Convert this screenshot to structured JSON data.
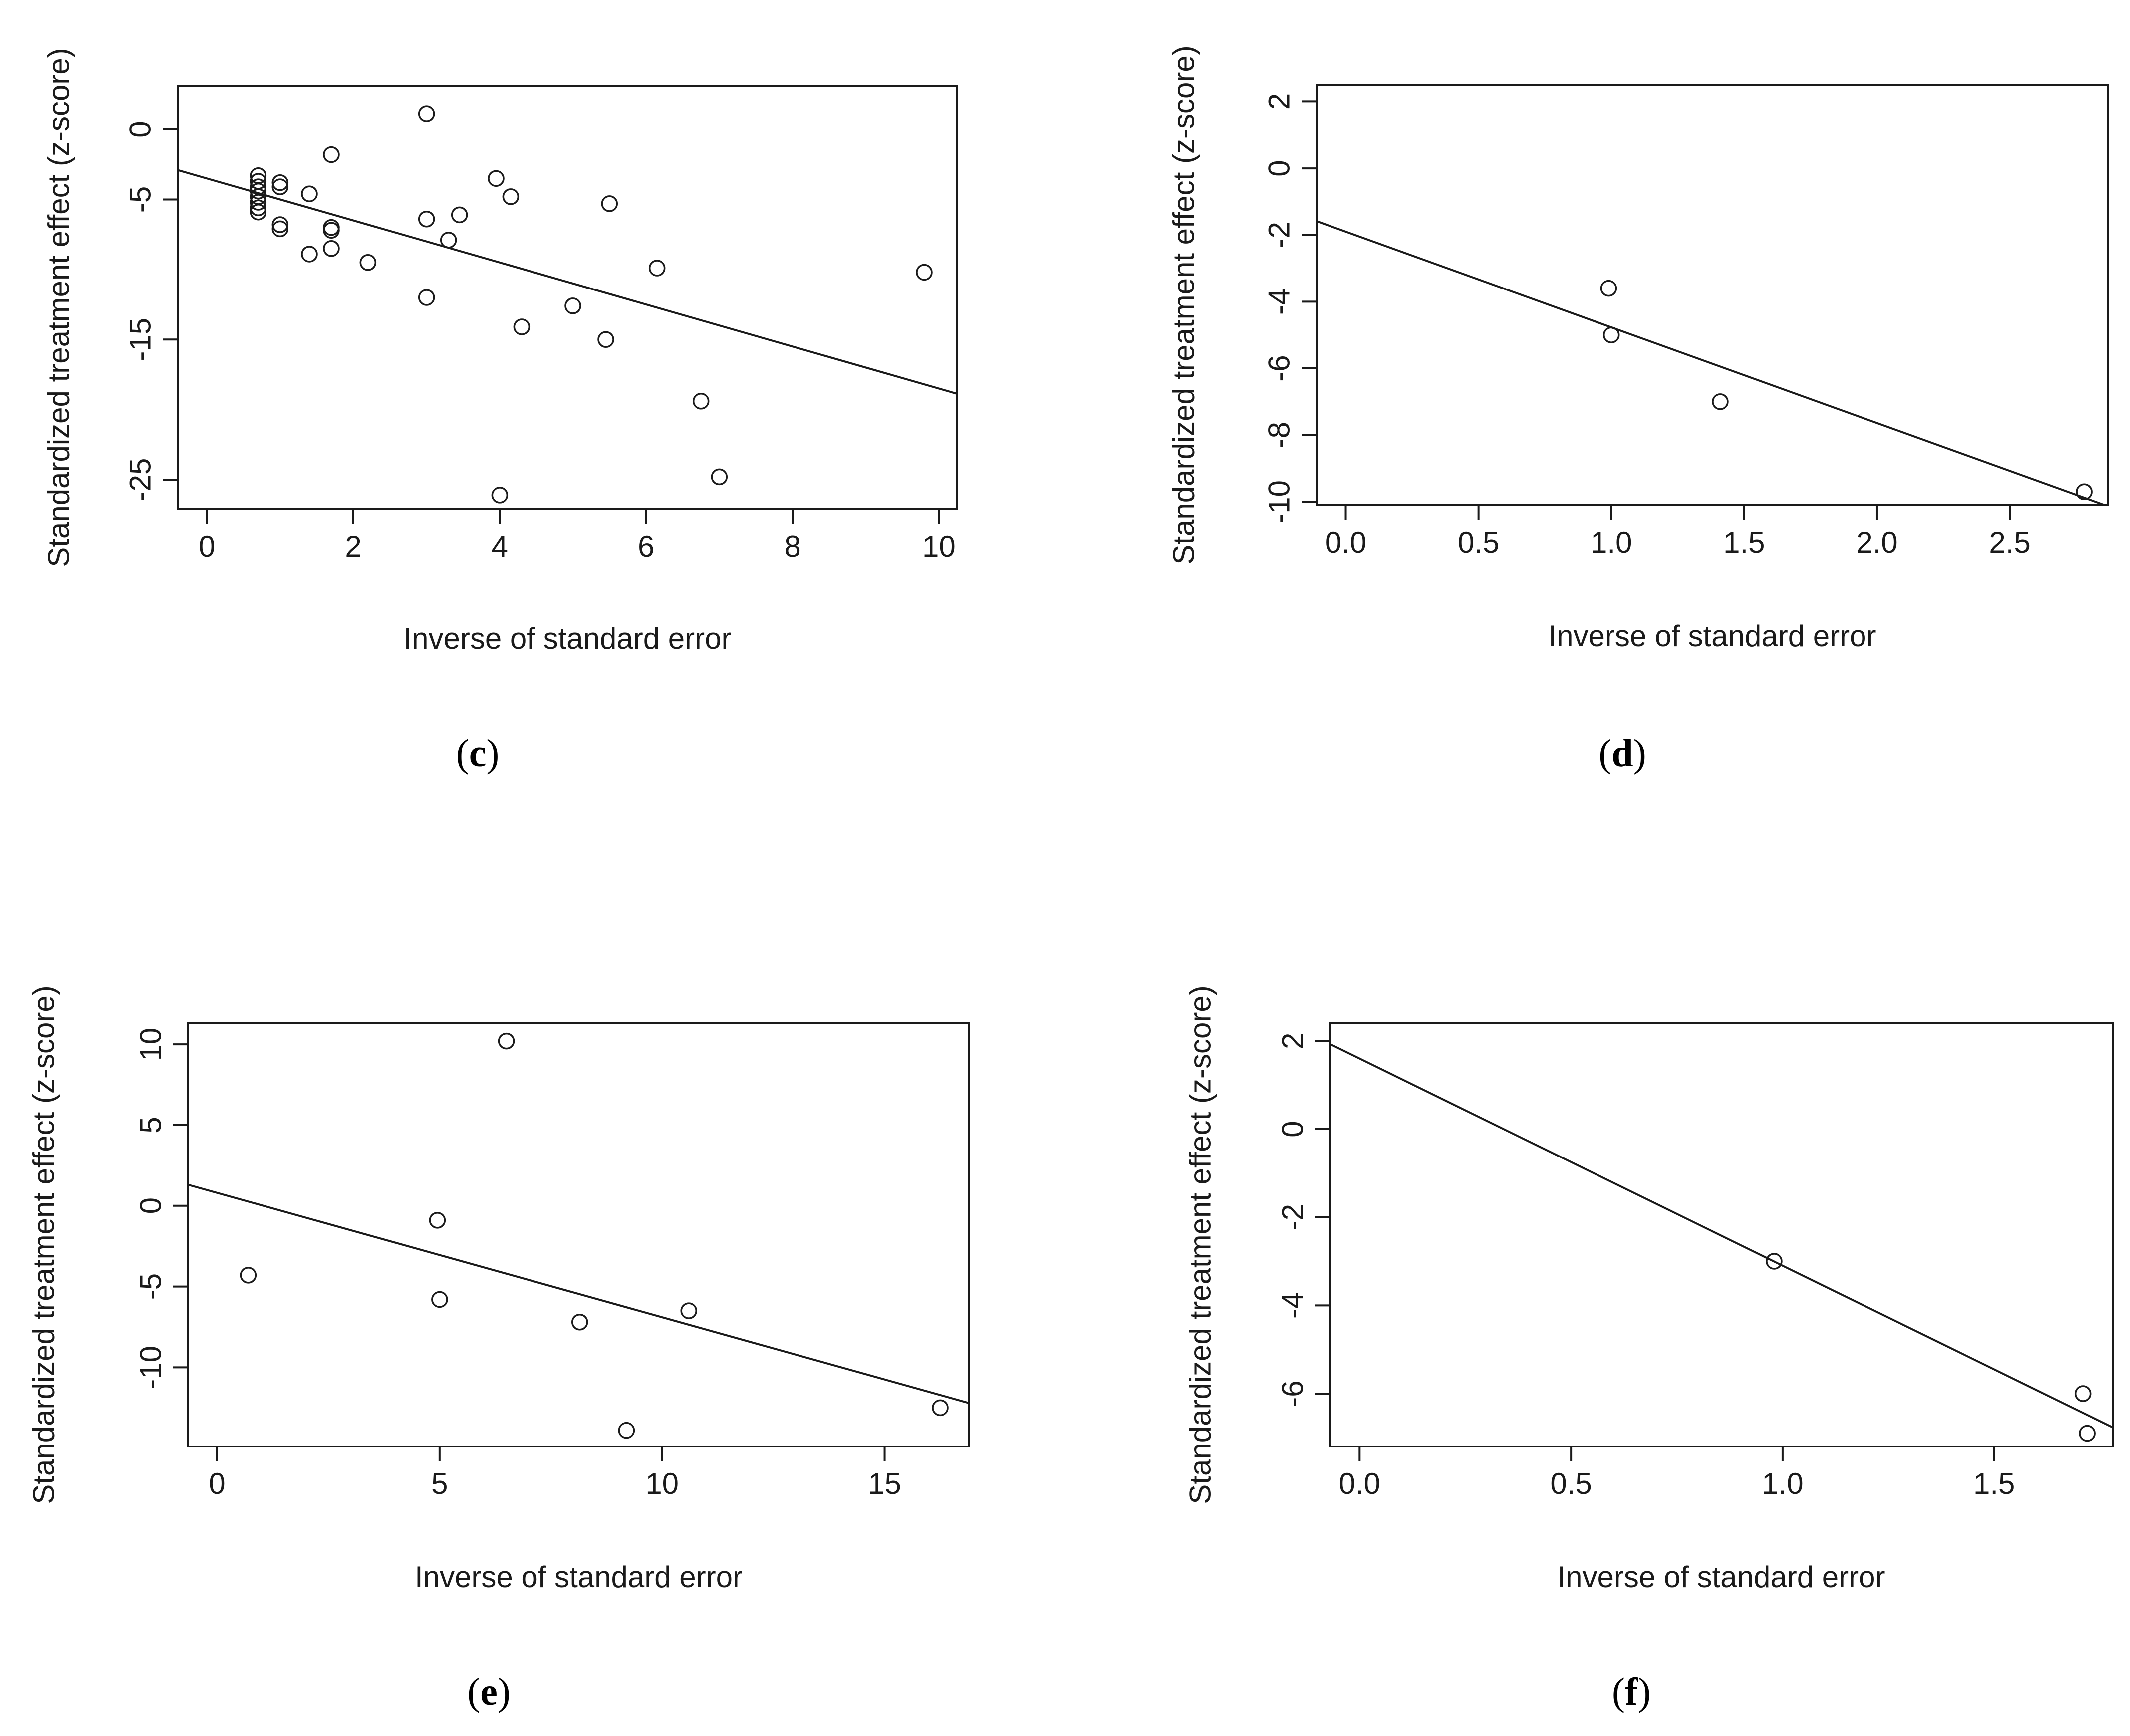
{
  "colors": {
    "ink": "#1a1a1a",
    "background": "#ffffff",
    "caption": "#000000"
  },
  "chart_data": [
    {
      "type": "scatter",
      "panel_label": "c",
      "caption": "(c)",
      "xlabel": "Inverse of standard error",
      "ylabel": "Standardized treatment effect (z-score)",
      "xlim": [
        -0.4,
        10.25
      ],
      "ylim": [
        -27.1,
        3.1
      ],
      "xticks": [
        0,
        2,
        4,
        6,
        8,
        10
      ],
      "yticks": [
        0,
        -5,
        -15,
        -25
      ],
      "xtick_labels": [
        "0",
        "2",
        "4",
        "6",
        "8",
        "10"
      ],
      "ytick_labels": [
        "0",
        "-5",
        "-15",
        "-25"
      ],
      "regression_line": {
        "intercept": -3.5,
        "slope": -1.5
      },
      "points": [
        {
          "x": 0.7,
          "y": -3.3
        },
        {
          "x": 0.7,
          "y": -3.7
        },
        {
          "x": 0.7,
          "y": -4.1
        },
        {
          "x": 0.7,
          "y": -4.4
        },
        {
          "x": 0.7,
          "y": -4.8
        },
        {
          "x": 0.7,
          "y": -5.2
        },
        {
          "x": 0.7,
          "y": -5.6
        },
        {
          "x": 0.7,
          "y": -5.9
        },
        {
          "x": 1.0,
          "y": -3.8
        },
        {
          "x": 1.0,
          "y": -4.1
        },
        {
          "x": 1.0,
          "y": -6.8
        },
        {
          "x": 1.0,
          "y": -7.1
        },
        {
          "x": 1.4,
          "y": -4.6
        },
        {
          "x": 1.4,
          "y": -8.9
        },
        {
          "x": 1.7,
          "y": -1.8
        },
        {
          "x": 1.7,
          "y": -7.0
        },
        {
          "x": 1.7,
          "y": -7.2
        },
        {
          "x": 1.7,
          "y": -8.5
        },
        {
          "x": 2.2,
          "y": -9.5
        },
        {
          "x": 3.0,
          "y": 1.1
        },
        {
          "x": 3.0,
          "y": -6.4
        },
        {
          "x": 3.0,
          "y": -12.0
        },
        {
          "x": 3.3,
          "y": -7.9
        },
        {
          "x": 3.45,
          "y": -6.1
        },
        {
          "x": 3.95,
          "y": -3.5
        },
        {
          "x": 4.0,
          "y": -26.1
        },
        {
          "x": 4.15,
          "y": -4.8
        },
        {
          "x": 4.3,
          "y": -14.1
        },
        {
          "x": 5.0,
          "y": -12.6
        },
        {
          "x": 5.45,
          "y": -15.0
        },
        {
          "x": 5.5,
          "y": -5.3
        },
        {
          "x": 6.15,
          "y": -9.9
        },
        {
          "x": 6.75,
          "y": -19.4
        },
        {
          "x": 7.0,
          "y": -24.8
        },
        {
          "x": 9.8,
          "y": -10.2
        }
      ]
    },
    {
      "type": "scatter",
      "panel_label": "d",
      "caption": "(d)",
      "xlabel": "Inverse of standard error",
      "ylabel": "Standardized treatment effect (z-score)",
      "xlim": [
        -0.11,
        2.87
      ],
      "ylim": [
        -10.1,
        2.5
      ],
      "xticks": [
        0.0,
        0.5,
        1.0,
        1.5,
        2.0,
        2.5
      ],
      "yticks": [
        2,
        0,
        -2,
        -4,
        -6,
        -8,
        -10
      ],
      "xtick_labels": [
        "0.0",
        "0.5",
        "1.0",
        "1.5",
        "2.0",
        "2.5"
      ],
      "ytick_labels": [
        "2",
        "0",
        "-2",
        "-4",
        "-6",
        "-8",
        "-10"
      ],
      "regression_line": {
        "intercept": -1.9,
        "slope": -2.87
      },
      "points": [
        {
          "x": 0.99,
          "y": -3.6
        },
        {
          "x": 1.0,
          "y": -5.0
        },
        {
          "x": 1.41,
          "y": -7.0
        },
        {
          "x": 2.78,
          "y": -9.7
        }
      ]
    },
    {
      "type": "scatter",
      "panel_label": "e",
      "caption": "(e)",
      "xlabel": "Inverse of standard error",
      "ylabel": "Standardized treatment effect (z-score)",
      "xlim": [
        -0.65,
        16.9
      ],
      "ylim": [
        -14.9,
        11.3
      ],
      "xticks": [
        0,
        5,
        10,
        15
      ],
      "yticks": [
        10,
        5,
        0,
        -5,
        -10
      ],
      "xtick_labels": [
        "0",
        "5",
        "10",
        "15"
      ],
      "ytick_labels": [
        "10",
        "5",
        "0",
        "-5",
        "-10"
      ],
      "regression_line": {
        "intercept": 0.8,
        "slope": -0.77
      },
      "points": [
        {
          "x": 0.7,
          "y": -4.3
        },
        {
          "x": 4.95,
          "y": -0.9
        },
        {
          "x": 5.0,
          "y": -5.8
        },
        {
          "x": 6.5,
          "y": 10.2
        },
        {
          "x": 8.15,
          "y": -7.2
        },
        {
          "x": 9.2,
          "y": -13.9
        },
        {
          "x": 10.6,
          "y": -6.5
        },
        {
          "x": 16.25,
          "y": -12.5
        }
      ]
    },
    {
      "type": "scatter",
      "panel_label": "f",
      "caption": "(f)",
      "xlabel": "Inverse of standard error",
      "ylabel": "Standardized treatment effect (z-score)",
      "xlim": [
        -0.07,
        1.78
      ],
      "ylim": [
        -7.2,
        2.4
      ],
      "xticks": [
        0.0,
        0.5,
        1.0,
        1.5
      ],
      "yticks": [
        2,
        0,
        -2,
        -4,
        -6
      ],
      "xtick_labels": [
        "0.0",
        "0.5",
        "1.0",
        "1.5"
      ],
      "ytick_labels": [
        "2",
        "0",
        "-2",
        "-4",
        "-6"
      ],
      "regression_line": {
        "intercept": 1.6,
        "slope": -4.7
      },
      "points": [
        {
          "x": 0.98,
          "y": -3.0
        },
        {
          "x": 1.71,
          "y": -6.0
        },
        {
          "x": 1.72,
          "y": -6.9
        }
      ]
    }
  ]
}
